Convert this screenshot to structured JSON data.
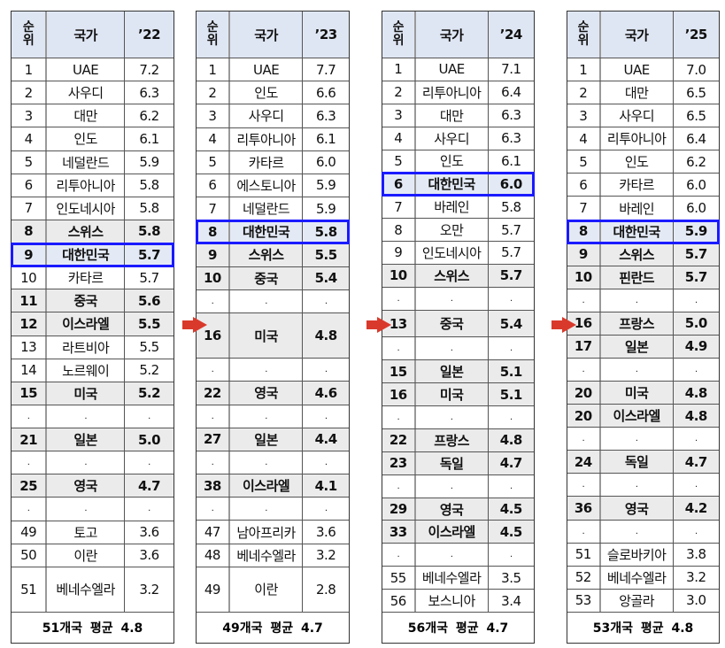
{
  "colors": {
    "header_bg": "#dfe6f3",
    "highlight_bg": "#ebebeb",
    "korea_border": "#1a1aff",
    "arrow": "#d9392b"
  },
  "tables": [
    {
      "header": {
        "rank": "순위",
        "country": "국가",
        "year": "’22"
      },
      "rows": [
        [
          "1",
          "UAE",
          "7.2",
          ""
        ],
        [
          "2",
          "사우디",
          "6.3",
          ""
        ],
        [
          "3",
          "대만",
          "6.2",
          ""
        ],
        [
          "4",
          "인도",
          "6.1",
          ""
        ],
        [
          "5",
          "네덜란드",
          "5.9",
          ""
        ],
        [
          "6",
          "리투아니아",
          "5.8",
          ""
        ],
        [
          "7",
          "인도네시아",
          "5.8",
          ""
        ],
        [
          "8",
          "스위스",
          "5.8",
          "bold"
        ],
        [
          "9",
          "대한민국",
          "5.7",
          "korea"
        ],
        [
          "10",
          "카타르",
          "5.7",
          ""
        ],
        [
          "11",
          "중국",
          "5.6",
          "bold"
        ],
        [
          "12",
          "이스라엘",
          "5.5",
          "bold"
        ],
        [
          "13",
          "라트비아",
          "5.5",
          ""
        ],
        [
          "14",
          "노르웨이",
          "5.2",
          ""
        ],
        [
          "15",
          "미국",
          "5.2",
          "bold"
        ],
        [
          ".",
          ".",
          ".",
          "dot"
        ],
        [
          "21",
          "일본",
          "5.0",
          "bold"
        ],
        [
          ".",
          ".",
          ".",
          "dot"
        ],
        [
          "25",
          "영국",
          "4.7",
          "bold"
        ],
        [
          ".",
          ".",
          ".",
          "dot"
        ],
        [
          "49",
          "토고",
          "3.6",
          ""
        ],
        [
          "50",
          "이란",
          "3.6",
          ""
        ],
        [
          "51",
          "베네수엘라",
          "3.2",
          ""
        ]
      ],
      "footer": "51개국 평균 4.8"
    },
    {
      "header": {
        "rank": "순위",
        "country": "국가",
        "year": "’23"
      },
      "rows": [
        [
          "1",
          "UAE",
          "7.7",
          ""
        ],
        [
          "2",
          "인도",
          "6.6",
          ""
        ],
        [
          "3",
          "사우디",
          "6.3",
          ""
        ],
        [
          "4",
          "리투아니아",
          "6.1",
          ""
        ],
        [
          "5",
          "카타르",
          "6.0",
          ""
        ],
        [
          "6",
          "에스토니아",
          "5.9",
          ""
        ],
        [
          "7",
          "네덜란드",
          "5.9",
          ""
        ],
        [
          "8",
          "대한민국",
          "5.8",
          "korea"
        ],
        [
          "9",
          "스위스",
          "5.5",
          "bold"
        ],
        [
          "10",
          "중국",
          "5.4",
          "bold"
        ],
        [
          ".",
          ".",
          ".",
          "dot"
        ],
        [
          "16",
          "미국",
          "4.8",
          "bold"
        ],
        [
          ".",
          ".",
          ".",
          "dot"
        ],
        [
          "22",
          "영국",
          "4.6",
          "bold"
        ],
        [
          ".",
          ".",
          ".",
          "dot"
        ],
        [
          "27",
          "일본",
          "4.4",
          "bold"
        ],
        [
          ".",
          ".",
          ".",
          "dot"
        ],
        [
          "38",
          "이스라엘",
          "4.1",
          "bold"
        ],
        [
          ".",
          ".",
          ".",
          "dot"
        ],
        [
          "47",
          "남아프리카",
          "3.6",
          ""
        ],
        [
          "48",
          "베네수엘라",
          "3.2",
          ""
        ],
        [
          "49",
          "이란",
          "2.8",
          ""
        ]
      ],
      "footer": "49개국 평균 4.7"
    },
    {
      "header": {
        "rank": "순위",
        "country": "국가",
        "year": "’24"
      },
      "rows": [
        [
          "1",
          "UAE",
          "7.1",
          ""
        ],
        [
          "2",
          "리투아니아",
          "6.4",
          ""
        ],
        [
          "3",
          "대만",
          "6.3",
          ""
        ],
        [
          "4",
          "사우디",
          "6.3",
          ""
        ],
        [
          "5",
          "인도",
          "6.1",
          ""
        ],
        [
          "6",
          "대한민국",
          "6.0",
          "korea"
        ],
        [
          "7",
          "바레인",
          "5.8",
          ""
        ],
        [
          "8",
          "오만",
          "5.7",
          ""
        ],
        [
          "9",
          "인도네시아",
          "5.7",
          ""
        ],
        [
          "10",
          "스위스",
          "5.7",
          "bold"
        ],
        [
          ".",
          ".",
          ".",
          "dot"
        ],
        [
          "13",
          "중국",
          "5.4",
          "bold"
        ],
        [
          ".",
          ".",
          ".",
          "dot"
        ],
        [
          "15",
          "일본",
          "5.1",
          "bold"
        ],
        [
          "16",
          "미국",
          "5.1",
          "bold"
        ],
        [
          ".",
          ".",
          ".",
          "dot"
        ],
        [
          "22",
          "프랑스",
          "4.8",
          "bold"
        ],
        [
          "23",
          "독일",
          "4.7",
          "bold"
        ],
        [
          ".",
          ".",
          ".",
          "dot"
        ],
        [
          "29",
          "영국",
          "4.5",
          "bold"
        ],
        [
          "33",
          "이스라엘",
          "4.5",
          "bold"
        ],
        [
          ".",
          ".",
          ".",
          "dot"
        ],
        [
          "55",
          "베네수엘라",
          "3.5",
          ""
        ],
        [
          "56",
          "보스니아",
          "3.4",
          ""
        ]
      ],
      "footer": "56개국 평균 4.7"
    },
    {
      "header": {
        "rank": "순위",
        "country": "국가",
        "year": "’25"
      },
      "rows": [
        [
          "1",
          "UAE",
          "7.0",
          ""
        ],
        [
          "2",
          "대만",
          "6.5",
          ""
        ],
        [
          "3",
          "사우디",
          "6.5",
          ""
        ],
        [
          "4",
          "리투아니아",
          "6.4",
          ""
        ],
        [
          "5",
          "인도",
          "6.2",
          ""
        ],
        [
          "6",
          "카타르",
          "6.0",
          ""
        ],
        [
          "7",
          "바레인",
          "6.0",
          ""
        ],
        [
          "8",
          "대한민국",
          "5.9",
          "korea"
        ],
        [
          "9",
          "스위스",
          "5.7",
          "bold"
        ],
        [
          "10",
          "핀란드",
          "5.7",
          "bold"
        ],
        [
          ".",
          ".",
          ".",
          "dot"
        ],
        [
          "16",
          "프랑스",
          "5.0",
          "bold"
        ],
        [
          "17",
          "일본",
          "4.9",
          "bold"
        ],
        [
          ".",
          ".",
          ".",
          "dot"
        ],
        [
          "20",
          "미국",
          "4.8",
          "bold"
        ],
        [
          "20",
          "이스라엘",
          "4.8",
          "bold"
        ],
        [
          ".",
          ".",
          ".",
          "dot"
        ],
        [
          "24",
          "독일",
          "4.7",
          "bold"
        ],
        [
          ".",
          ".",
          ".",
          "dot"
        ],
        [
          "36",
          "영국",
          "4.2",
          "bold"
        ],
        [
          ".",
          ".",
          ".",
          "dot"
        ],
        [
          "51",
          "슬로바키아",
          "3.8",
          ""
        ],
        [
          "52",
          "베네수엘라",
          "3.2",
          ""
        ],
        [
          "53",
          "앙골라",
          "3.0",
          ""
        ]
      ],
      "footer": "53개국 평균 4.8"
    }
  ]
}
